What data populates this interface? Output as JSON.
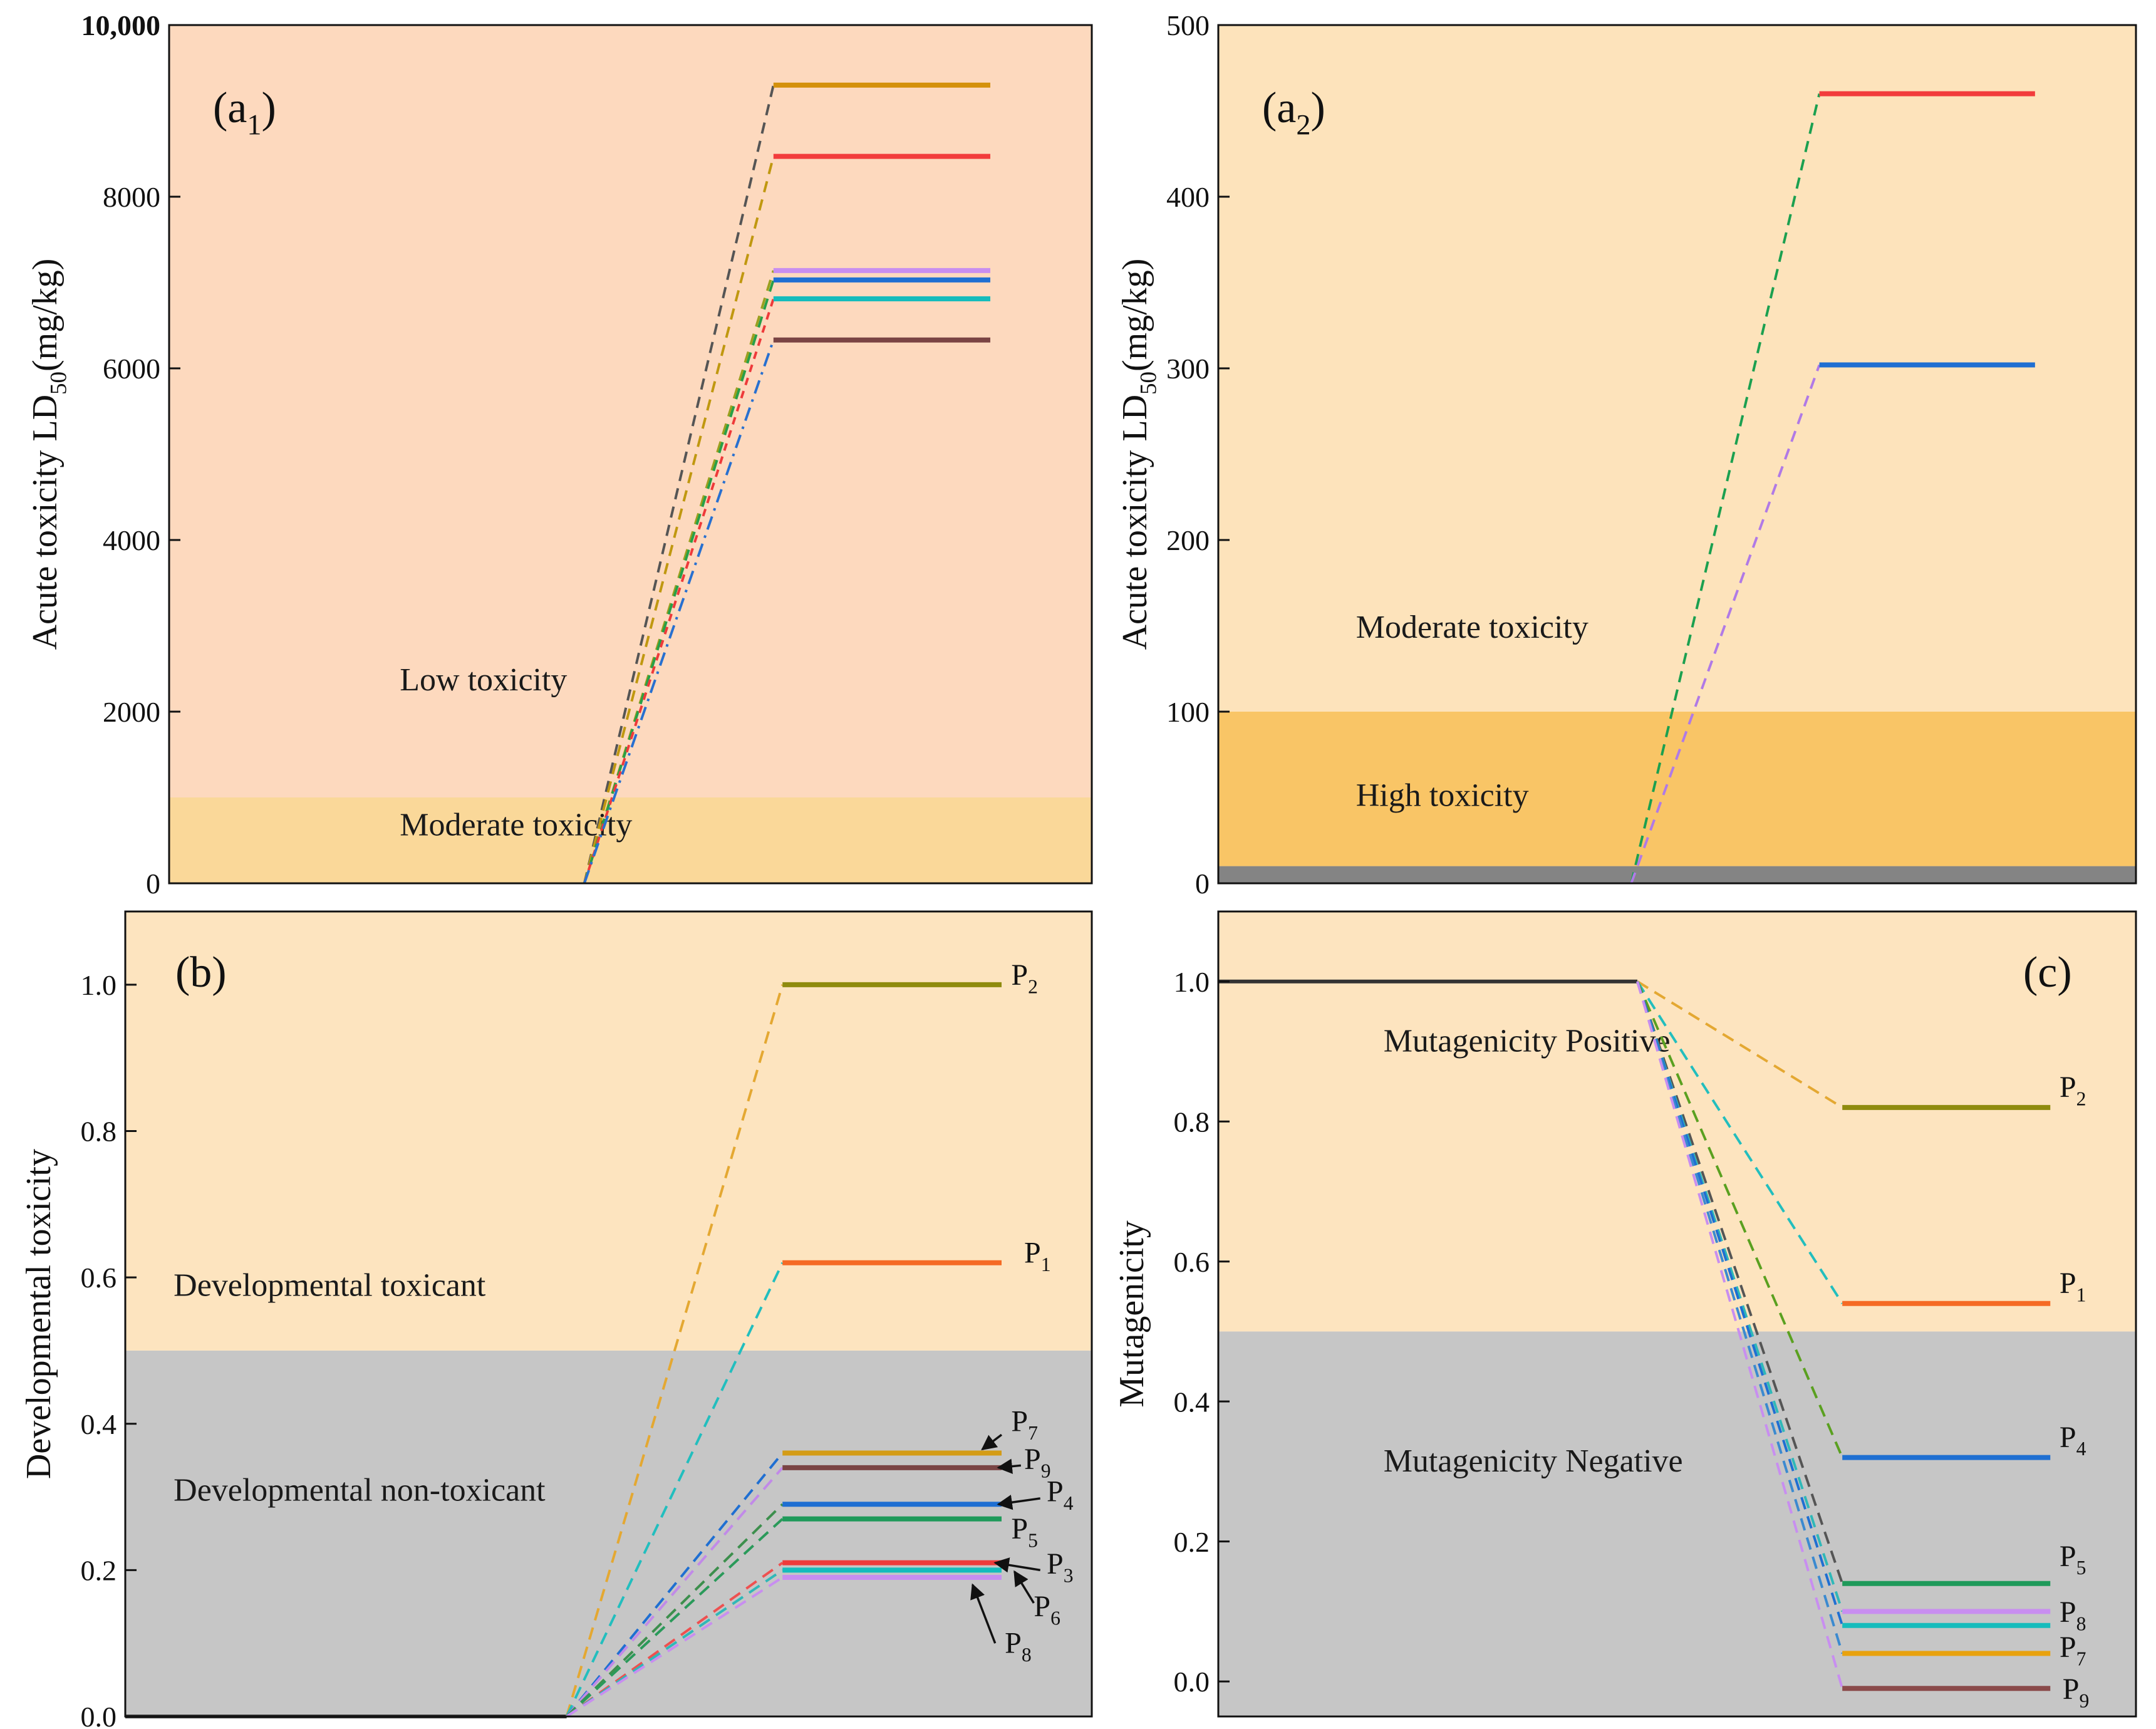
{
  "chart_data": [
    {
      "id": "a1",
      "type": "line",
      "panel_label": {
        "base": "(a",
        "sub": "1",
        "close": ")"
      },
      "ylabel": {
        "base": "Acute toxicity LD",
        "sub": "50",
        "tail": "(mg/kg)"
      },
      "ylim": [
        0,
        10000
      ],
      "xlim": [
        0,
        10
      ],
      "yticks": [
        {
          "value": 0,
          "label": "0"
        },
        {
          "value": 2000,
          "label": "2000"
        },
        {
          "value": 4000,
          "label": "4000"
        },
        {
          "value": 6000,
          "label": "6000"
        },
        {
          "value": 8000,
          "label": "8000"
        },
        {
          "value": 10000,
          "label": "10,000"
        }
      ],
      "bands": [
        {
          "from": 0,
          "to": 1000,
          "color": "#fad899",
          "label": "Moderate toxicity",
          "label_y": 560
        },
        {
          "from": 1000,
          "to": 10000,
          "color": "#fdd9be",
          "label": "Low toxicity",
          "label_y": 2250
        }
      ],
      "label_x": 0.25,
      "series": [
        {
          "start": [
            4.5,
            0
          ],
          "join": 6.55,
          "end": 8.9,
          "value": 9300,
          "color": "#d4910c",
          "conn_color": "#555555",
          "dash": "18 12"
        },
        {
          "start": [
            4.5,
            0
          ],
          "join": 6.55,
          "end": 8.9,
          "value": 8470,
          "color": "#f23c3c",
          "conn_color": "#c09810",
          "dash": "18 12"
        },
        {
          "start": [
            4.5,
            0
          ],
          "join": 6.55,
          "end": 8.9,
          "value": 7140,
          "color": "#c88ef0",
          "conn_color": "#9aa020",
          "dash": "18 12"
        },
        {
          "start": [
            4.5,
            0
          ],
          "join": 6.55,
          "end": 8.9,
          "value": 7030,
          "color": "#1f6fd2",
          "conn_color": "#28a048",
          "dash": "18 12"
        },
        {
          "start": [
            4.5,
            0
          ],
          "join": 6.55,
          "end": 8.9,
          "value": 6810,
          "color": "#16bcbc",
          "conn_color": "#ee3a3a",
          "dash": "12 10"
        },
        {
          "start": [
            4.5,
            0
          ],
          "join": 6.55,
          "end": 8.9,
          "value": 6330,
          "color": "#7a4444",
          "conn_color": "#2870d0",
          "dash": "22 10 4 10"
        }
      ],
      "point_labels": []
    },
    {
      "id": "a2",
      "type": "line",
      "panel_label": {
        "base": "(a",
        "sub": "2",
        "close": ")"
      },
      "ylabel": {
        "base": "Acute toxicity LD",
        "sub": "50",
        "tail": "(mg/kg)"
      },
      "ylim": [
        0,
        500
      ],
      "xlim": [
        0,
        10
      ],
      "yticks": [
        {
          "value": 0,
          "label": "0"
        },
        {
          "value": 100,
          "label": "100"
        },
        {
          "value": 200,
          "label": "200"
        },
        {
          "value": 300,
          "label": "300"
        },
        {
          "value": 400,
          "label": "400"
        },
        {
          "value": 500,
          "label": "500"
        }
      ],
      "bands": [
        {
          "from": 0,
          "to": 10,
          "color": "#848484",
          "label": "",
          "label_y": 0
        },
        {
          "from": 10,
          "to": 100,
          "color": "#f9c566",
          "label": "High toxicity",
          "label_y": 45
        },
        {
          "from": 100,
          "to": 500,
          "color": "#fde3bb",
          "label": "Moderate toxicity",
          "label_y": 143
        }
      ],
      "label_x": 0.15,
      "series": [
        {
          "start": [
            4.5,
            0
          ],
          "join": 6.55,
          "end": 8.9,
          "value": 460,
          "color": "#f23c3c",
          "conn_color": "#1ba050",
          "dash": "18 12"
        },
        {
          "start": [
            4.5,
            0
          ],
          "join": 6.55,
          "end": 8.9,
          "value": 302,
          "color": "#1f6fd2",
          "conn_color": "#b07ae6",
          "dash": "18 12"
        }
      ],
      "point_labels": []
    },
    {
      "id": "b",
      "type": "line",
      "panel_label": {
        "base": "(b)",
        "sub": "",
        "close": ""
      },
      "ylabel": {
        "base": "Developmental toxicity",
        "sub": "",
        "tail": ""
      },
      "ylim": [
        0,
        1.1
      ],
      "xlim": [
        0,
        10
      ],
      "yticks": [
        {
          "value": 0,
          "label": "0.0"
        },
        {
          "value": 0.2,
          "label": "0.2"
        },
        {
          "value": 0.4,
          "label": "0.4"
        },
        {
          "value": 0.6,
          "label": "0.6"
        },
        {
          "value": 0.8,
          "label": "0.8"
        },
        {
          "value": 1.0,
          "label": "1.0"
        }
      ],
      "bands": [
        {
          "from": 0,
          "to": 0.5,
          "color": "#c6c6c6",
          "label": "Developmental non-toxicant",
          "label_y": 0.295
        },
        {
          "from": 0.5,
          "to": 1.1,
          "color": "#fde4bf",
          "label": "Developmental toxicant",
          "label_y": 0.575
        }
      ],
      "label_x": 0.05,
      "baseline": {
        "x_from": 0,
        "x_to": 6.85,
        "value": 0,
        "color": "#333333"
      },
      "series": [
        {
          "start": [
            6.85,
            0
          ],
          "join": 10.2,
          "end": 13.6,
          "value": 1.0,
          "color": "#8f8b0e",
          "conn_color": "#e4a832",
          "dash": "20 12"
        },
        {
          "start": [
            6.85,
            0
          ],
          "join": 10.2,
          "end": 13.6,
          "value": 0.62,
          "color": "#f56a24",
          "conn_color": "#22bebe",
          "dash": "20 12"
        },
        {
          "start": [
            6.85,
            0
          ],
          "join": 10.2,
          "end": 13.6,
          "value": 0.36,
          "color": "#d49c16",
          "conn_color": "#1f6fd2",
          "dash": "20 12"
        },
        {
          "start": [
            6.85,
            0
          ],
          "join": 10.2,
          "end": 13.6,
          "value": 0.34,
          "color": "#7a4444",
          "conn_color": "#c18ae8",
          "dash": "20 12"
        },
        {
          "start": [
            6.85,
            0
          ],
          "join": 10.2,
          "end": 13.6,
          "value": 0.29,
          "color": "#1f6fd2",
          "conn_color": "#3d8f4d",
          "dash": "20 12"
        },
        {
          "start": [
            6.85,
            0
          ],
          "join": 10.2,
          "end": 13.6,
          "value": 0.27,
          "color": "#1f9a5a",
          "conn_color": "#2a9a5a",
          "dash": "20 12"
        },
        {
          "start": [
            6.85,
            0
          ],
          "join": 10.2,
          "end": 13.6,
          "value": 0.21,
          "color": "#ee3a3a",
          "conn_color": "#ee5050",
          "dash": "20 12"
        },
        {
          "start": [
            6.85,
            0
          ],
          "join": 10.2,
          "end": 13.6,
          "value": 0.2,
          "color": "#16bcbc",
          "conn_color": "#2fb8b8",
          "dash": "20 12"
        },
        {
          "start": [
            6.85,
            0
          ],
          "join": 10.2,
          "end": 13.6,
          "value": 0.19,
          "color": "#c88ef0",
          "conn_color": "#c88ef0",
          "dash": "20 12"
        }
      ],
      "point_labels": [
        {
          "base": "P",
          "sub": "2",
          "x": 13.75,
          "y": 1.0,
          "arrow_from": null
        },
        {
          "base": "P",
          "sub": "1",
          "x": 13.95,
          "y": 0.62,
          "arrow_from": null
        },
        {
          "base": "P",
          "sub": "7",
          "x": 13.75,
          "y": 0.39,
          "arrow_from": [
            13.6,
            0.385
          ],
          "arrow_to": [
            13.3,
            0.365
          ]
        },
        {
          "base": "P",
          "sub": "9",
          "x": 13.95,
          "y": 0.338,
          "arrow_from": [
            13.9,
            0.343
          ],
          "arrow_to": [
            13.55,
            0.34
          ]
        },
        {
          "base": "P",
          "sub": "4",
          "x": 14.3,
          "y": 0.294,
          "arrow_from": [
            14.2,
            0.298
          ],
          "arrow_to": [
            13.55,
            0.29
          ]
        },
        {
          "base": "P",
          "sub": "5",
          "x": 13.75,
          "y": 0.243,
          "arrow_from": null
        },
        {
          "base": "P",
          "sub": "3",
          "x": 14.3,
          "y": 0.195,
          "arrow_from": [
            14.2,
            0.2
          ],
          "arrow_to": [
            13.5,
            0.21
          ]
        },
        {
          "base": "P",
          "sub": "6",
          "x": 14.1,
          "y": 0.137,
          "arrow_from": [
            14.1,
            0.155
          ],
          "arrow_to": [
            13.8,
            0.198
          ]
        },
        {
          "base": "P",
          "sub": "8",
          "x": 13.65,
          "y": 0.087,
          "arrow_from": [
            13.5,
            0.1
          ],
          "arrow_to": [
            13.15,
            0.18
          ]
        }
      ]
    },
    {
      "id": "c",
      "type": "line",
      "panel_label": {
        "base": "(c)",
        "sub": "",
        "close": ""
      },
      "ylabel": {
        "base": "Mutagenicity",
        "sub": "",
        "tail": ""
      },
      "ylim": [
        -0.05,
        1.1
      ],
      "xlim": [
        0,
        10
      ],
      "yticks": [
        {
          "value": 0,
          "label": "0.0"
        },
        {
          "value": 0.2,
          "label": "0.2"
        },
        {
          "value": 0.4,
          "label": "0.4"
        },
        {
          "value": 0.6,
          "label": "0.6"
        },
        {
          "value": 0.8,
          "label": "0.8"
        },
        {
          "value": 1.0,
          "label": "1.0"
        }
      ],
      "bands": [
        {
          "from": -0.05,
          "to": 0.5,
          "color": "#c6c6c6",
          "label": "Mutagenicity Negative",
          "label_y": 0.3
        },
        {
          "from": 0.5,
          "to": 1.1,
          "color": "#fde4bf",
          "label": "Mutagenicity Positive",
          "label_y": 0.9
        }
      ],
      "label_x": 0.18,
      "baseline": {
        "x_from": 0,
        "x_to": 6.85,
        "value": 1.0,
        "color": "#333333"
      },
      "series": [
        {
          "start": [
            6.85,
            1.0
          ],
          "join": 10.2,
          "end": 13.6,
          "value": 0.82,
          "color": "#8f8b0e",
          "conn_color": "#e4a832",
          "dash": "20 12"
        },
        {
          "start": [
            6.85,
            1.0
          ],
          "join": 10.2,
          "end": 13.6,
          "value": 0.54,
          "color": "#f56a24",
          "conn_color": "#22bebe",
          "dash": "20 12"
        },
        {
          "start": [
            6.85,
            1.0
          ],
          "join": 10.2,
          "end": 13.6,
          "value": 0.32,
          "color": "#1f6fd2",
          "conn_color": "#5aa020",
          "dash": "20 12"
        },
        {
          "start": [
            6.85,
            1.0
          ],
          "join": 10.2,
          "end": 13.6,
          "value": 0.14,
          "color": "#1f9a5a",
          "conn_color": "#555555",
          "dash": "20 12"
        },
        {
          "start": [
            6.85,
            1.0
          ],
          "join": 10.2,
          "end": 13.6,
          "value": 0.1,
          "color": "#c88ef0",
          "conn_color": "#2fb8b8",
          "dash": "20 12"
        },
        {
          "start": [
            6.85,
            1.0
          ],
          "join": 10.2,
          "end": 13.6,
          "value": 0.08,
          "color": "#16bcbc",
          "conn_color": "#1f6fd2",
          "dash": "20 12"
        },
        {
          "start": [
            6.85,
            1.0
          ],
          "join": 10.2,
          "end": 13.6,
          "value": 0.04,
          "color": "#e8a20e",
          "conn_color": "#3b8ad0",
          "dash": "20 12"
        },
        {
          "start": [
            6.85,
            1.0
          ],
          "join": 10.2,
          "end": 13.6,
          "value": -0.01,
          "color": "#8a4a4a",
          "conn_color": "#c88ef0",
          "dash": "20 12"
        }
      ],
      "point_labels": [
        {
          "base": "P",
          "sub": "2",
          "x": 13.75,
          "y": 0.835,
          "arrow_from": null
        },
        {
          "base": "P",
          "sub": "1",
          "x": 13.75,
          "y": 0.555,
          "arrow_from": null
        },
        {
          "base": "P",
          "sub": "4",
          "x": 13.75,
          "y": 0.335,
          "arrow_from": null
        },
        {
          "base": "P",
          "sub": "5",
          "x": 13.75,
          "y": 0.165,
          "arrow_from": null
        },
        {
          "base": "P",
          "sub": "8",
          "x": 13.75,
          "y": 0.085,
          "arrow_from": null
        },
        {
          "base": "P",
          "sub": "7",
          "x": 13.75,
          "y": 0.035,
          "arrow_from": null
        },
        {
          "base": "P",
          "sub": "9",
          "x": 13.8,
          "y": -0.025,
          "arrow_from": null
        }
      ]
    }
  ]
}
